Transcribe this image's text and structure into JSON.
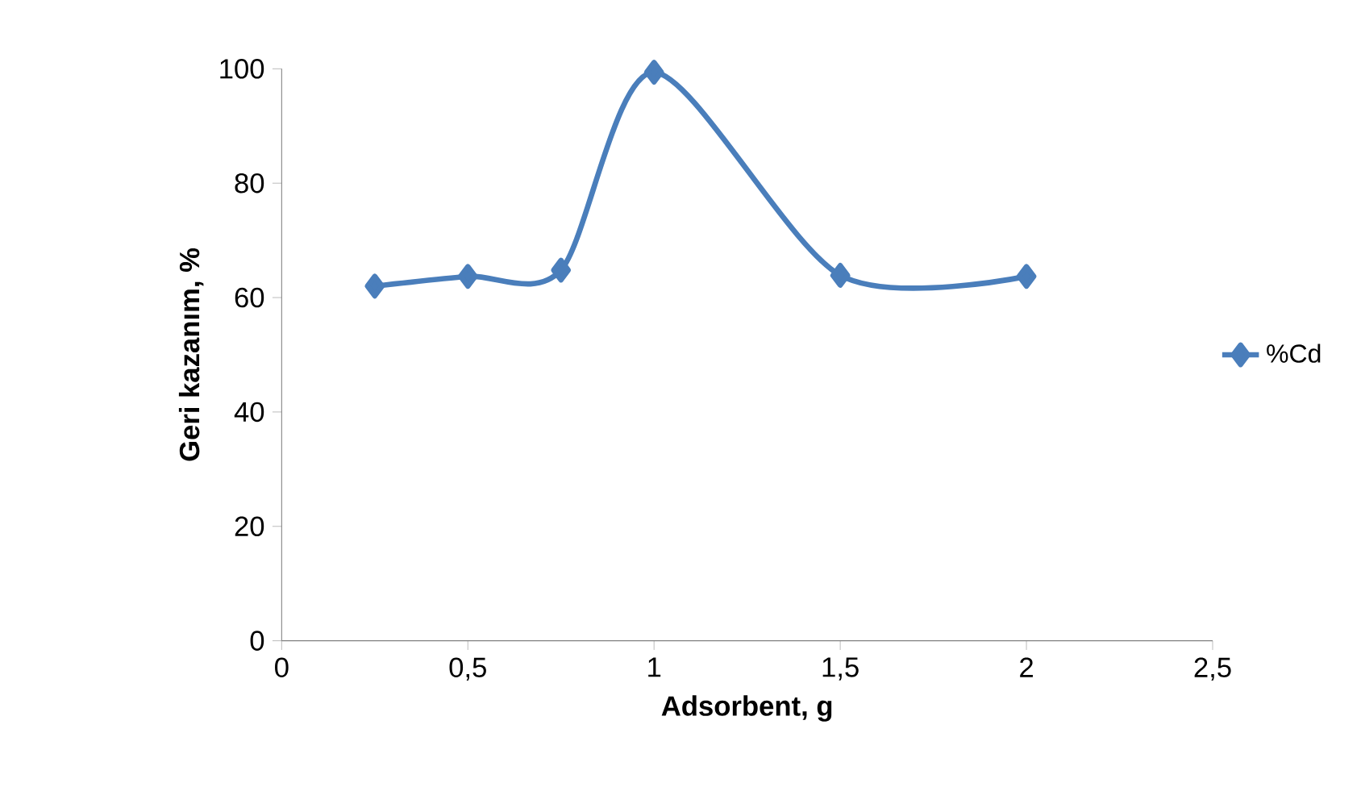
{
  "chart_data": {
    "type": "line",
    "xlabel": "Adsorbent, g",
    "ylabel": "Geri kazanım, %",
    "x": [
      0.25,
      0.5,
      0.75,
      1,
      1.5,
      2
    ],
    "series": [
      {
        "name": "%Cd",
        "color": "#4a7ebb",
        "values": [
          62,
          63.7,
          64.8,
          99.4,
          63.9,
          63.7
        ]
      }
    ],
    "xlim": [
      0,
      2.5
    ],
    "ylim": [
      0,
      100
    ],
    "xticks": [
      0,
      {
        "value": 0.5,
        "label": "0,5"
      },
      1,
      {
        "value": 1.5,
        "label": "1,5"
      },
      2,
      {
        "value": 2.5,
        "label": "2,5"
      }
    ],
    "yticks": [
      0,
      20,
      40,
      60,
      80,
      100
    ],
    "grid": false,
    "legend": "right",
    "marker": "diamond",
    "line_style": "solid"
  }
}
